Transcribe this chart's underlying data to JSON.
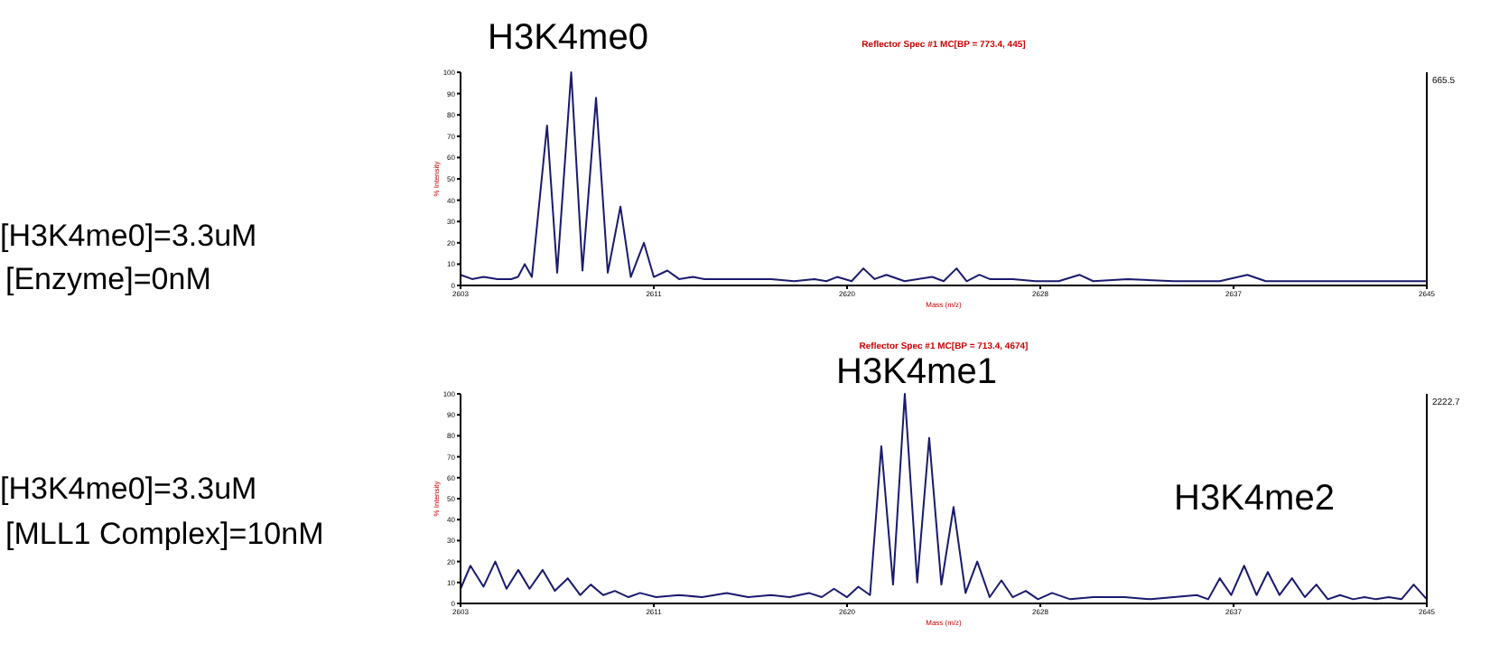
{
  "chart_data": [
    {
      "type": "line",
      "title": "Reflector Spec #1 MC[BP = 773.4, 445]",
      "xlabel": "Mass (m/z)",
      "ylabel": "% Intensity",
      "xlim": [
        2603,
        2645
      ],
      "xticks": [
        {
          "value": 2603,
          "label": "2603"
        },
        {
          "value": 2611.4,
          "label": "2611"
        },
        {
          "value": 2619.8,
          "label": "2620"
        },
        {
          "value": 2628.2,
          "label": "2628"
        },
        {
          "value": 2636.6,
          "label": "2637"
        },
        {
          "value": 2645,
          "label": "2645"
        }
      ],
      "ylim": [
        0,
        100
      ],
      "yticks": [
        0,
        10,
        20,
        30,
        40,
        50,
        60,
        70,
        80,
        90,
        100
      ],
      "grid": false,
      "marker": "none",
      "line_style": "solid",
      "annotations": [
        "H3K4me0",
        "[H3K4me0]=3.3uM",
        "[Enzyme]=0nM",
        "665.5"
      ],
      "series": [
        {
          "color": "#1a1a6e",
          "x": [
            2603,
            2603.5,
            2604,
            2604.6,
            2605.2,
            2605.5,
            2605.79,
            2606.1,
            2606.76,
            2607.2,
            2607.81,
            2608.3,
            2608.89,
            2609.4,
            2609.95,
            2610.4,
            2610.97,
            2611.4,
            2611.99,
            2612.5,
            2613.1,
            2613.6,
            2614.5,
            2615.5,
            2616.5,
            2617.5,
            2618.38,
            2618.9,
            2619.37,
            2620,
            2620.51,
            2621,
            2621.51,
            2622.3,
            2623.5,
            2624,
            2624.56,
            2625,
            2625.55,
            2626,
            2627,
            2628,
            2629,
            2629.9,
            2630.5,
            2632,
            2634,
            2636,
            2637.2,
            2638,
            2640,
            2642,
            2644,
            2645
          ],
          "values": [
            5,
            3,
            4,
            3,
            3,
            4,
            10,
            4,
            75,
            6,
            100,
            7,
            88,
            6,
            37,
            4,
            20,
            4,
            7,
            3,
            4,
            3,
            3,
            3,
            3,
            2,
            3,
            2,
            4,
            2,
            8,
            3,
            5,
            2,
            4,
            2,
            8,
            2,
            5,
            3,
            3,
            2,
            2,
            5,
            2,
            3,
            2,
            2,
            5,
            2,
            2,
            2,
            2,
            2
          ]
        }
      ]
    },
    {
      "type": "line",
      "title": "Reflector Spec #1 MC[BP = 713.4, 4674]",
      "xlabel": "Mass (m/z)",
      "ylabel": "% Intensity",
      "xlim": [
        2603,
        2645
      ],
      "xticks": [
        {
          "value": 2603,
          "label": "2603"
        },
        {
          "value": 2611.4,
          "label": "2611"
        },
        {
          "value": 2619.8,
          "label": "2620"
        },
        {
          "value": 2628.2,
          "label": "2628"
        },
        {
          "value": 2636.6,
          "label": "2637"
        },
        {
          "value": 2645,
          "label": "2645"
        }
      ],
      "ylim": [
        0,
        100
      ],
      "yticks": [
        0,
        10,
        20,
        30,
        40,
        50,
        60,
        70,
        80,
        90,
        100
      ],
      "grid": false,
      "marker": "none",
      "line_style": "solid",
      "annotations": [
        "H3K4me1",
        "H3K4me2",
        "[H3K4me0]=3.3uM",
        "[MLL1 Complex]=10nM",
        "2222.7"
      ],
      "series": [
        {
          "color": "#1a1a6e",
          "x": [
            2603,
            2603.43,
            2604,
            2604.51,
            2605,
            2605.51,
            2606,
            2606.57,
            2607.1,
            2607.66,
            2608.2,
            2608.66,
            2609.2,
            2609.71,
            2610.3,
            2610.8,
            2611.5,
            2612.5,
            2613.5,
            2614.57,
            2615.5,
            2616.5,
            2617.3,
            2618.14,
            2618.7,
            2619.23,
            2619.8,
            2620.29,
            2620.8,
            2621.29,
            2621.8,
            2622.31,
            2622.85,
            2623.37,
            2623.9,
            2624.43,
            2624.95,
            2625.46,
            2626,
            2626.51,
            2627,
            2627.57,
            2628.1,
            2628.71,
            2629.5,
            2630.5,
            2631.86,
            2633,
            2634,
            2635,
            2635.5,
            2636,
            2636.5,
            2637.06,
            2637.6,
            2638.09,
            2638.6,
            2639.14,
            2639.7,
            2640.2,
            2640.7,
            2641.23,
            2641.8,
            2642.29,
            2642.8,
            2643.34,
            2643.9,
            2644.43,
            2645
          ],
          "values": [
            7,
            18,
            8,
            20,
            7,
            16,
            7,
            16,
            6,
            12,
            4,
            9,
            4,
            6,
            3,
            5,
            3,
            4,
            3,
            5,
            3,
            4,
            3,
            5,
            3,
            7,
            3,
            8,
            4,
            75,
            9,
            100,
            10,
            79,
            9,
            46,
            5,
            20,
            3,
            11,
            3,
            6,
            2,
            5,
            2,
            3,
            3,
            2,
            3,
            4,
            2,
            12,
            4,
            18,
            4,
            15,
            4,
            12,
            3,
            9,
            2,
            4,
            2,
            3,
            2,
            3,
            2,
            9,
            2
          ]
        }
      ]
    }
  ]
}
